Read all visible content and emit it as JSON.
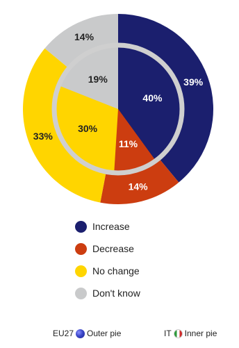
{
  "chart_data": {
    "type": "pie",
    "categories": [
      "Increase",
      "Decrease",
      "No change",
      "Don't know"
    ],
    "series": [
      {
        "name": "EU27",
        "role": "outer",
        "values": [
          39,
          14,
          33,
          14
        ]
      },
      {
        "name": "IT",
        "role": "inner",
        "values": [
          40,
          11,
          30,
          19
        ]
      }
    ],
    "colors": [
      "#1b1f6e",
      "#cc3d10",
      "#ffd500",
      "#c9cacb"
    ],
    "label_colors": [
      "#ffffff",
      "#ffffff",
      "#222222",
      "#222222"
    ]
  },
  "legend": {
    "items": [
      {
        "label": "Increase",
        "color": "#1b1f6e"
      },
      {
        "label": "Decrease",
        "color": "#cc3d10"
      },
      {
        "label": "No change",
        "color": "#ffd500"
      },
      {
        "label": "Don't know",
        "color": "#c9cacb"
      }
    ]
  },
  "footer": {
    "outer_prefix": "EU27",
    "outer_text": "Outer pie",
    "inner_prefix": "IT",
    "inner_text": "Inner pie"
  }
}
